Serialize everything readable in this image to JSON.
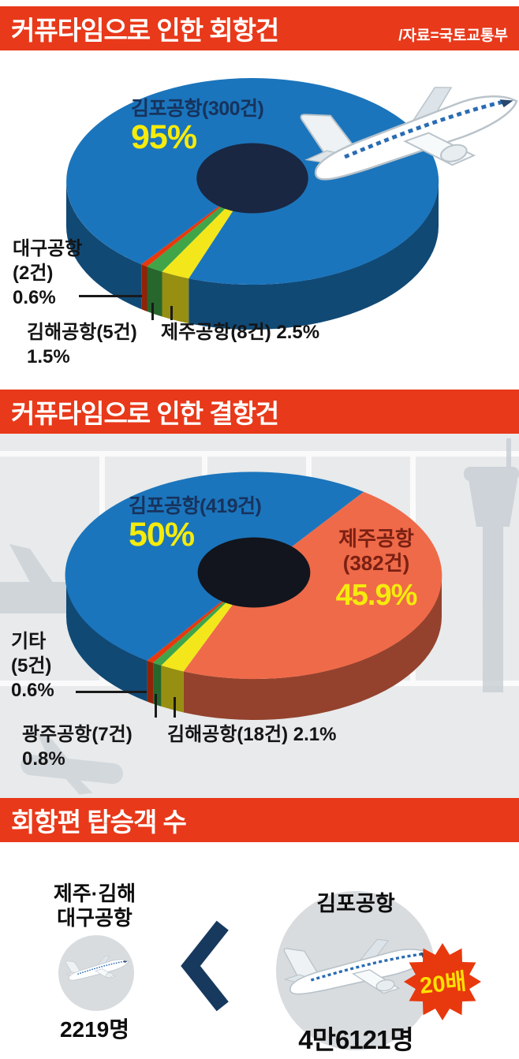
{
  "source_label": "/자료=국토교통부",
  "sections": {
    "divert": {
      "title": "커퓨타임으로 인한 회항건",
      "callouts": {
        "gimpo": {
          "name_line": "김포공항(300건)",
          "pct_line": "95%"
        },
        "daegu": {
          "line1": "대구공항",
          "line2": "(2건)",
          "line3": "0.6%"
        },
        "gimhae": {
          "line1": "김해공항(5건)",
          "line2": "1.5%"
        },
        "jeju": {
          "line1": "제주공항(8건) 2.5%"
        }
      }
    },
    "cancel": {
      "title": "커퓨타임으로 인한 결항건",
      "callouts": {
        "gimpo": {
          "name_line": "김포공항(419건)",
          "pct_line": "50%"
        },
        "jeju": {
          "line1": "제주공항",
          "line2": "(382건)",
          "pct_line": "45.9%"
        },
        "etc": {
          "line1": "기타",
          "line2": "(5건)",
          "line3": "0.6%"
        },
        "gwangju": {
          "line1": "광주공항(7건)",
          "line2": "0.8%"
        },
        "gimhae": {
          "line1": "김해공항(18건) 2.1%"
        }
      }
    },
    "passengers": {
      "title": "회항편 탑승객 수",
      "small_group": {
        "label_line1": "제주·김해",
        "label_line2": "대구공항",
        "value": "2219명"
      },
      "big_group": {
        "label": "김포공항",
        "value": "4만6121명",
        "badge": "20배"
      }
    }
  },
  "chart_data": [
    {
      "type": "pie",
      "subtype": "3d-donut",
      "title": "커퓨타임으로 인한 회항건",
      "unit": "건",
      "hole_color": "#1a2742",
      "slices": [
        {
          "label": "제주공항",
          "cases": 8,
          "pct": 2.5,
          "color": "#f3e71c"
        },
        {
          "label": "김해공항",
          "cases": 5,
          "pct": 1.5,
          "color": "#3fa548"
        },
        {
          "label": "대구공항",
          "cases": 2,
          "pct": 0.6,
          "color": "#e8380d"
        },
        {
          "label": "김포공항",
          "cases": 300,
          "pct": 95,
          "color": "#1b75bc"
        }
      ]
    },
    {
      "type": "pie",
      "subtype": "3d-donut",
      "title": "커퓨타임으로 인한 결항건",
      "unit": "건",
      "hole_color": "#12151d",
      "slices": [
        {
          "label": "김해공항",
          "cases": 18,
          "pct": 2.1,
          "color": "#f3e71c"
        },
        {
          "label": "광주공항",
          "cases": 7,
          "pct": 0.8,
          "color": "#3fa548"
        },
        {
          "label": "기타",
          "cases": 5,
          "pct": 0.6,
          "color": "#e8380d"
        },
        {
          "label": "김포공항",
          "cases": 419,
          "pct": 50,
          "color": "#1b75bc"
        },
        {
          "label": "제주공항",
          "cases": 382,
          "pct": 45.9,
          "color": "#ef6a49"
        }
      ]
    },
    {
      "type": "pictogram-comparison",
      "title": "회항편 탑승객 수",
      "items": [
        {
          "label": "김포공항",
          "passengers": 46121,
          "display": "4만6121명"
        },
        {
          "label": "제주·김해·대구공항",
          "passengers": 2219,
          "display": "2219명"
        }
      ],
      "ratio_label": "20배"
    }
  ],
  "icons": {
    "airplane": "white-jet-airplane-illustration",
    "chevron": "left-angle-chevron",
    "badge": "starburst-badge",
    "tower": "control-tower-silhouette",
    "window_grid": "terminal-window-grid"
  },
  "colors": {
    "header_bg": "#e8391a",
    "percent_yellow": "#f5eb0c",
    "callout_navy": "#17335d",
    "jeju_callout_red": "#7b2012",
    "cancel_bg_gray": "#e8eaeb",
    "circle_gray": "#d9dcde",
    "chevron_navy": "#17395e",
    "badge_red": "#e8380d",
    "badge_text_yellow": "#ffe100"
  }
}
